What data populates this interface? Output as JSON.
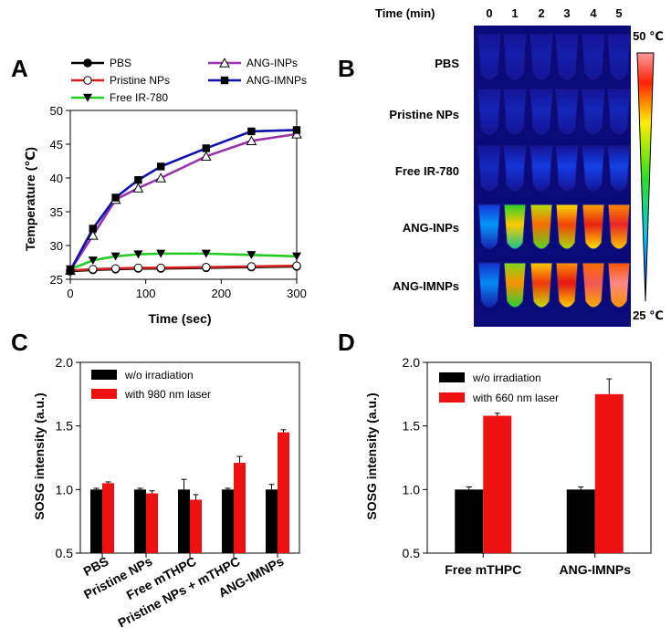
{
  "panel_letters": {
    "a": "A",
    "b": "B",
    "c": "C",
    "d": "D"
  },
  "colors": {
    "pbs": "#000000",
    "pristine": "#d42020",
    "free_ir": "#22cc22",
    "ang_inps": "#9933aa",
    "ang_imnps": "#1010aa",
    "bar_black": "#000000",
    "bar_red": "#ee1111"
  },
  "panel_b": {
    "header_label": "Time (min)",
    "time_points": [
      "0",
      "1",
      "2",
      "3",
      "4",
      "5"
    ],
    "rows": [
      "PBS",
      "Pristine NPs",
      "Free IR-780",
      "ANG-INPs",
      "ANG-IMNPs"
    ],
    "intensity": [
      [
        0.04,
        0.04,
        0.04,
        0.04,
        0.04,
        0.04
      ],
      [
        0.06,
        0.06,
        0.07,
        0.07,
        0.07,
        0.07
      ],
      [
        0.08,
        0.12,
        0.14,
        0.15,
        0.16,
        0.16
      ],
      [
        0.3,
        0.68,
        0.78,
        0.84,
        0.9,
        0.93
      ],
      [
        0.28,
        0.74,
        0.86,
        0.92,
        0.96,
        0.99
      ]
    ],
    "scale_max_label": "50 ℃",
    "scale_min_label": "25 ℃"
  },
  "chart_data": [
    {
      "id": "A",
      "type": "line",
      "title": "",
      "xlabel": "Time (sec)",
      "ylabel": "Temperature (℃)",
      "xlim": [
        0,
        300
      ],
      "ylim": [
        25,
        50
      ],
      "xticks": [
        0,
        100,
        200,
        300
      ],
      "yticks": [
        25,
        30,
        35,
        40,
        45,
        50
      ],
      "series": [
        {
          "name": "PBS",
          "marker": "filled-circle",
          "x": [
            0,
            30,
            60,
            90,
            120,
            180,
            240,
            300
          ],
          "y": [
            26.2,
            26.4,
            26.5,
            26.6,
            26.6,
            26.7,
            26.8,
            26.9
          ]
        },
        {
          "name": "Pristine NPs",
          "marker": "open-circle",
          "x": [
            0,
            30,
            60,
            90,
            120,
            180,
            240,
            300
          ],
          "y": [
            26.3,
            26.5,
            26.6,
            26.7,
            26.7,
            26.8,
            26.9,
            27.0
          ]
        },
        {
          "name": "Free IR-780",
          "marker": "filled-triangle-down",
          "x": [
            0,
            30,
            60,
            90,
            120,
            180,
            240,
            300
          ],
          "y": [
            26.5,
            27.8,
            28.4,
            28.7,
            28.8,
            28.8,
            28.6,
            28.4
          ]
        },
        {
          "name": "ANG-INPs",
          "marker": "open-triangle-up",
          "x": [
            0,
            30,
            60,
            90,
            120,
            180,
            240,
            300
          ],
          "y": [
            26.3,
            31.5,
            36.8,
            38.5,
            40.0,
            43.2,
            45.5,
            46.5
          ]
        },
        {
          "name": "ANG-IMNPs",
          "marker": "filled-square",
          "x": [
            0,
            30,
            60,
            90,
            120,
            180,
            240,
            300
          ],
          "y": [
            26.3,
            32.5,
            37.1,
            39.7,
            41.7,
            44.4,
            46.9,
            47.1
          ]
        }
      ]
    },
    {
      "id": "C",
      "type": "bar",
      "title": "",
      "xlabel": "",
      "ylabel": "SOSG intensity (a.u.)",
      "ylim": [
        0.5,
        2.0
      ],
      "yticks": [
        0.5,
        1.0,
        1.5,
        2.0
      ],
      "categories": [
        "PBS",
        "Pristine NPs",
        "Free mTHPC",
        "Pristine NPs + mTHPC",
        "ANG-IMNPs"
      ],
      "series": [
        {
          "name": "w/o irradiation",
          "values": [
            1.0,
            1.0,
            1.0,
            1.0,
            1.0
          ],
          "errors": [
            0.01,
            0.01,
            0.08,
            0.01,
            0.04
          ]
        },
        {
          "name": "with 980 nm laser",
          "values": [
            1.05,
            0.97,
            0.92,
            1.21,
            1.45
          ],
          "errors": [
            0.01,
            0.02,
            0.04,
            0.05,
            0.02
          ]
        }
      ]
    },
    {
      "id": "D",
      "type": "bar",
      "title": "",
      "xlabel": "",
      "ylabel": "SOSG intensity (a.u.)",
      "ylim": [
        0.5,
        2.0
      ],
      "yticks": [
        0.5,
        1.0,
        1.5,
        2.0
      ],
      "categories": [
        "Free mTHPC",
        "ANG-IMNPs"
      ],
      "series": [
        {
          "name": "w/o irradiation",
          "values": [
            1.0,
            1.0
          ],
          "errors": [
            0.02,
            0.02
          ]
        },
        {
          "name": "with 660 nm laser",
          "values": [
            1.58,
            1.75
          ],
          "errors": [
            0.02,
            0.12
          ]
        }
      ]
    }
  ]
}
